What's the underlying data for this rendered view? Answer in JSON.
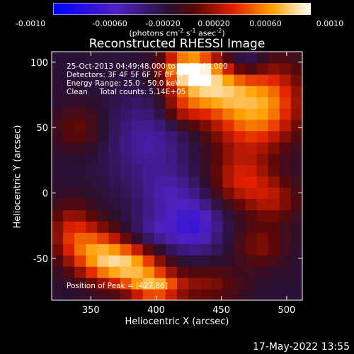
{
  "colorbar": {
    "ticks": [
      "-0.0010",
      "-0.00060",
      "-0.00020",
      "0.00020",
      "0.00060",
      "0.0010"
    ],
    "units_parts": [
      "(photons cm",
      "-2",
      " s",
      "-1",
      " asec",
      "-2",
      ")"
    ]
  },
  "chart_data": {
    "type": "heatmap",
    "title": "Reconstructed RHESSI Image",
    "xlabel": "Heliocentric X (arcsec)",
    "ylabel": "Heliocentric Y (arcsec)",
    "xlim": [
      320,
      512
    ],
    "ylim": [
      -82,
      108
    ],
    "x_ticks": [
      350,
      400,
      450,
      500
    ],
    "y_ticks": [
      100,
      50,
      0,
      -50
    ],
    "value_range": [
      -0.001,
      0.001
    ],
    "colormap": "blue-purple-red-yellow-white",
    "grid_nx": 22,
    "grid_ny": 22,
    "regions": [
      {
        "x": 425,
        "y": 95,
        "amp": 1.0,
        "sx": 14,
        "sy": 10
      },
      {
        "x": 445,
        "y": 80,
        "amp": 0.75,
        "sx": 20,
        "sy": 14
      },
      {
        "x": 470,
        "y": 55,
        "amp": 0.55,
        "sx": 22,
        "sy": 20
      },
      {
        "x": 490,
        "y": 75,
        "amp": 0.45,
        "sx": 18,
        "sy": 20
      },
      {
        "x": 420,
        "y": 65,
        "amp": 0.35,
        "sx": 12,
        "sy": 10
      },
      {
        "x": 380,
        "y": -55,
        "amp": 0.85,
        "sx": 18,
        "sy": 12
      },
      {
        "x": 355,
        "y": -45,
        "amp": 0.6,
        "sx": 14,
        "sy": 14
      },
      {
        "x": 400,
        "y": -72,
        "amp": 0.7,
        "sx": 14,
        "sy": 8
      },
      {
        "x": 335,
        "y": -30,
        "amp": 0.45,
        "sx": 12,
        "sy": 16
      },
      {
        "x": 465,
        "y": 10,
        "amp": 0.45,
        "sx": 16,
        "sy": 14
      },
      {
        "x": 490,
        "y": -5,
        "amp": 0.35,
        "sx": 14,
        "sy": 12
      },
      {
        "x": 440,
        "y": -70,
        "amp": 0.3,
        "sx": 18,
        "sy": 10
      },
      {
        "x": 480,
        "y": -40,
        "amp": 0.3,
        "sx": 14,
        "sy": 12
      },
      {
        "x": 340,
        "y": 50,
        "amp": 0.25,
        "sx": 14,
        "sy": 12
      },
      {
        "x": 430,
        "y": -25,
        "amp": -0.5,
        "sx": 14,
        "sy": 14
      },
      {
        "x": 395,
        "y": 40,
        "amp": -0.3,
        "sx": 22,
        "sy": 24
      },
      {
        "x": 410,
        "y": 0,
        "amp": -0.25,
        "sx": 16,
        "sy": 12
      },
      {
        "x": 470,
        "y": 100,
        "amp": -0.3,
        "sx": 10,
        "sy": 8
      },
      {
        "x": 400,
        "y": -30,
        "amp": -0.3,
        "sx": 14,
        "sy": 12
      }
    ],
    "baseline": -0.12
  },
  "annotations": {
    "time": "25-Oct-2013 04:49:48.000 to 04:52:44.000",
    "detectors": "Detectors: 3F 4F 5F 6F 7F 8F 9F 10",
    "energy": "Energy Range: 25.0 - 50.0 keV",
    "clean": "Clean     Total counts: 5.14E+05",
    "peak": "Position of Peak = [427,86]"
  },
  "footer": {
    "date": "17-May-2022 13:55"
  }
}
